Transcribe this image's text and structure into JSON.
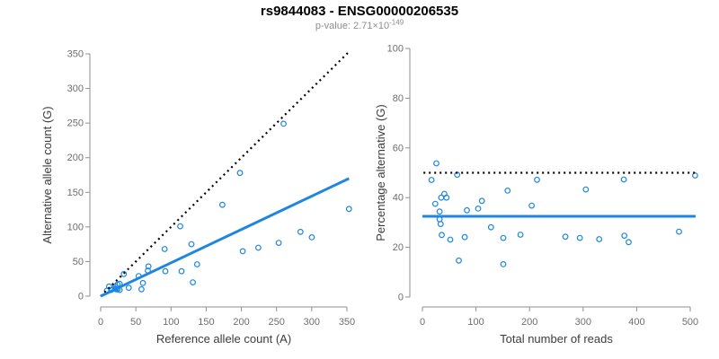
{
  "figure": {
    "title": "rs9844083 - ENSG00000206535",
    "pvalue_label": "p-value: 2.71×10",
    "pvalue_exponent": "-149",
    "colors": {
      "accent_blue": "#1E86E0",
      "line_black": "#000000",
      "axis_line": "#8f8f8f",
      "tick_text": "#6e6e6e",
      "axis_title_text": "#3c3c3c",
      "subtitle_gray": "#8e8e8e"
    }
  },
  "chart_data": [
    {
      "type": "scatter",
      "name": "allele-counts",
      "xlabel": "Reference allele count (A)",
      "ylabel": "Alternative allele count (G)",
      "xlim": [
        0,
        350
      ],
      "ylim": [
        0,
        350
      ],
      "xticks": [
        0,
        50,
        100,
        150,
        200,
        250,
        300,
        350
      ],
      "yticks": [
        0,
        50,
        100,
        150,
        200,
        250,
        300,
        350
      ],
      "grid": false,
      "legend": "none",
      "points": [
        [
          9,
          8
        ],
        [
          12,
          14
        ],
        [
          15,
          9
        ],
        [
          21,
          11
        ],
        [
          21,
          14
        ],
        [
          24,
          17
        ],
        [
          27,
          18
        ],
        [
          22,
          10
        ],
        [
          24,
          10
        ],
        [
          27,
          9
        ],
        [
          40,
          12
        ],
        [
          33,
          32
        ],
        [
          58,
          10
        ],
        [
          60,
          19
        ],
        [
          54,
          29
        ],
        [
          67,
          37
        ],
        [
          68,
          43
        ],
        [
          92,
          36
        ],
        [
          115,
          36
        ],
        [
          131,
          20
        ],
        [
          91,
          68
        ],
        [
          137,
          46
        ],
        [
          129,
          75
        ],
        [
          113,
          101
        ],
        [
          202,
          65
        ],
        [
          224,
          70
        ],
        [
          173,
          132
        ],
        [
          253,
          77
        ],
        [
          198,
          178
        ],
        [
          284,
          93
        ],
        [
          300,
          85
        ],
        [
          353,
          126
        ],
        [
          260,
          249
        ]
      ],
      "lines": [
        {
          "name": "identity-line",
          "dash": "dotted",
          "color": "#000000",
          "width": 2.2,
          "from": [
            0,
            0
          ],
          "to": [
            353,
            353
          ]
        },
        {
          "name": "regression-line",
          "dash": "solid",
          "color": "#1E86E0",
          "width": 3,
          "from": [
            0,
            0
          ],
          "to": [
            353,
            170
          ]
        }
      ]
    },
    {
      "type": "scatter",
      "name": "percentage-alternative",
      "xlabel": "Total number of reads",
      "ylabel": "Percentage alternative (G)",
      "xlim": [
        0,
        500
      ],
      "ylim": [
        0,
        100
      ],
      "xticks": [
        0,
        100,
        200,
        300,
        400,
        500
      ],
      "yticks": [
        0,
        20,
        40,
        60,
        80,
        100
      ],
      "grid": false,
      "legend": "none",
      "points": [
        [
          17,
          47.1
        ],
        [
          26,
          53.8
        ],
        [
          24,
          37.5
        ],
        [
          32,
          34.4
        ],
        [
          35,
          40.0
        ],
        [
          41,
          41.5
        ],
        [
          45,
          40.0
        ],
        [
          32,
          31.3
        ],
        [
          34,
          29.4
        ],
        [
          36,
          25.0
        ],
        [
          52,
          23.1
        ],
        [
          65,
          49.2
        ],
        [
          68,
          14.7
        ],
        [
          79,
          24.1
        ],
        [
          83,
          34.9
        ],
        [
          104,
          35.6
        ],
        [
          111,
          38.7
        ],
        [
          128,
          28.1
        ],
        [
          151,
          23.8
        ],
        [
          151,
          13.2
        ],
        [
          159,
          42.8
        ],
        [
          183,
          25.1
        ],
        [
          204,
          36.8
        ],
        [
          214,
          47.2
        ],
        [
          267,
          24.3
        ],
        [
          294,
          23.8
        ],
        [
          305,
          43.3
        ],
        [
          330,
          23.3
        ],
        [
          376,
          47.3
        ],
        [
          377,
          24.7
        ],
        [
          385,
          22.1
        ],
        [
          479,
          26.3
        ],
        [
          509,
          48.9
        ]
      ],
      "lines": [
        {
          "name": "reference-line-50pct",
          "dash": "dotted",
          "color": "#000000",
          "width": 2.2,
          "from": [
            2,
            50
          ],
          "to": [
            512,
            50
          ]
        },
        {
          "name": "mean-line",
          "dash": "solid",
          "color": "#1E86E0",
          "width": 3,
          "from": [
            0,
            32.5
          ],
          "to": [
            510,
            32.5
          ]
        }
      ]
    }
  ]
}
